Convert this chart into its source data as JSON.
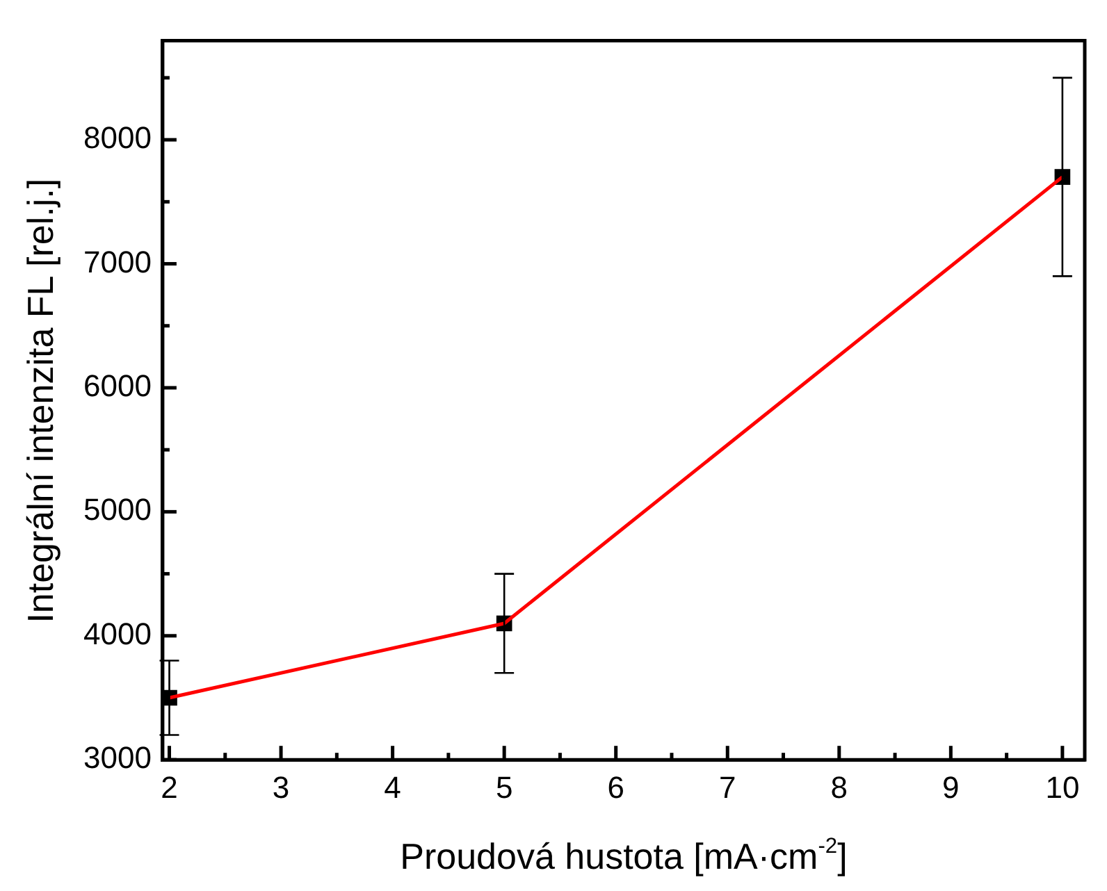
{
  "chart_data": {
    "type": "line",
    "xlabel": "Proudová hustota [mA·cm$^{-2}$]",
    "ylabel": "Integrální intenzita FL [rel.j.]",
    "x": [
      2,
      5,
      10
    ],
    "series": [
      {
        "color": "#ff0000",
        "values": [
          3500,
          4100,
          7700
        ],
        "marker": "none"
      },
      {
        "type": "scatter",
        "color": "#000000",
        "values": [
          3500,
          4100,
          7700
        ],
        "errors": [
          300,
          400,
          800
        ],
        "marker": "square"
      }
    ],
    "xlim": [
      1.94,
      10.2
    ],
    "xticks": [
      2,
      {
        "value": 2.5,
        "label": null
      },
      3,
      {
        "value": 3.5,
        "label": null
      },
      4,
      {
        "value": 4.5,
        "label": null
      },
      5,
      {
        "value": 5.5,
        "label": null
      },
      6,
      {
        "value": 6.5,
        "label": null
      },
      7,
      {
        "value": 7.5,
        "label": null
      },
      8,
      {
        "value": 8.5,
        "label": null
      },
      9,
      {
        "value": 9.5,
        "label": null
      },
      10
    ],
    "ylim": [
      3000,
      8800
    ],
    "yticks": [
      3000,
      {
        "value": 3500,
        "label": null
      },
      4000,
      {
        "value": 4500,
        "label": null
      },
      5000,
      {
        "value": 5500,
        "label": null
      },
      6000,
      {
        "value": 6500,
        "label": null
      },
      7000,
      {
        "value": 7500,
        "label": null
      },
      8000,
      {
        "value": 8500,
        "label": null
      }
    ],
    "grid": false,
    "legend": false
  }
}
